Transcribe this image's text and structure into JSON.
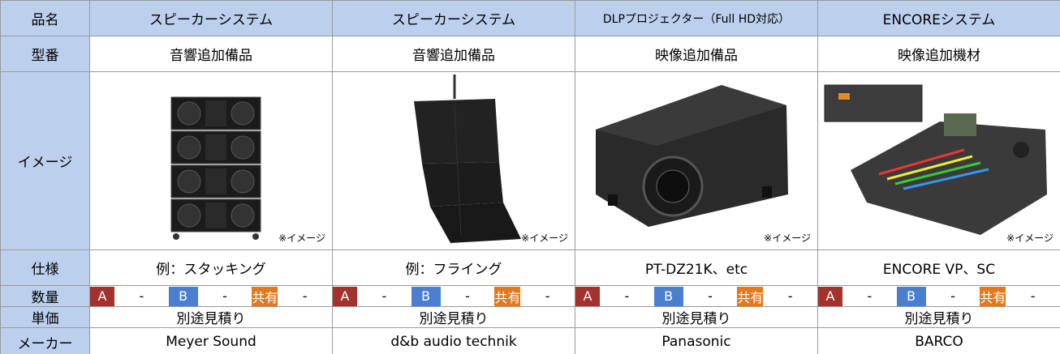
{
  "row_labels": [
    "品名",
    "型番",
    "イメージ",
    "仕様",
    "数量",
    "単価",
    "メーカー"
  ],
  "products": [
    {
      "name": "スピーカーシステム",
      "model": "音響追加備品",
      "note": "※イメージ",
      "spec": "例：スタッキング",
      "qty": [
        "A",
        "-",
        "B",
        "-",
        "共有",
        "-"
      ],
      "price": "別途見積り",
      "maker": "Meyer Sound"
    },
    {
      "name": "スピーカーシステム",
      "model": "音響追加備品",
      "note": "※イメージ",
      "spec": "例：フライング",
      "qty": [
        "A",
        "-",
        "B",
        "-",
        "共有",
        "-"
      ],
      "price": "別途見積り",
      "maker": "d&b audio technik"
    },
    {
      "name": "DLPプロジェクター（Full HD対応）",
      "model": "映像追加備品",
      "note": "※イメージ",
      "spec": "PT-DZ21K、etc",
      "qty": [
        "A",
        "-",
        "B",
        "-",
        "共有",
        "-"
      ],
      "price": "別途見積り",
      "maker": "Panasonic"
    },
    {
      "name": "ENCOREシステム",
      "model": "映像追加機材",
      "note": "※イメージ",
      "spec": "ENCORE VP、SC",
      "qty": [
        "A",
        "-",
        "B",
        "-",
        "共有",
        "-"
      ],
      "price": "別途見積り",
      "maker": "BARCO"
    }
  ]
}
